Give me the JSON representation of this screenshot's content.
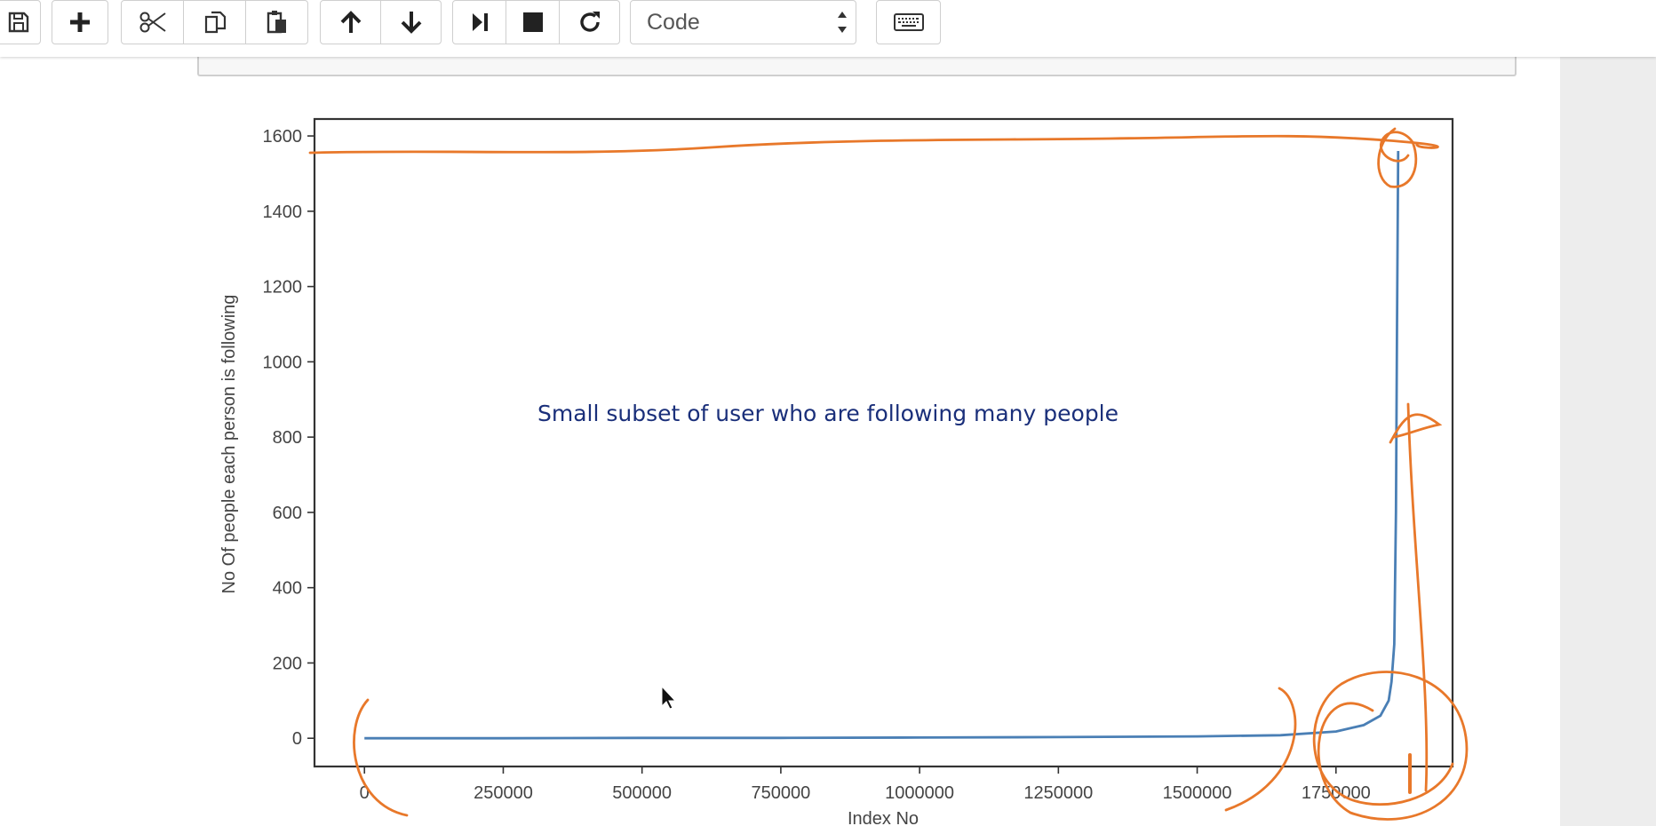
{
  "toolbar": {
    "buttons": [
      {
        "name": "save-icon"
      },
      {
        "name": "plus-icon"
      },
      {
        "name": "scissors-icon"
      },
      {
        "name": "copy-icon"
      },
      {
        "name": "paste-icon"
      },
      {
        "name": "arrow-up-icon"
      },
      {
        "name": "arrow-down-icon"
      },
      {
        "name": "step-forward-icon"
      },
      {
        "name": "stop-icon"
      },
      {
        "name": "restart-icon"
      },
      {
        "name": "keyboard-icon"
      }
    ],
    "cell_type": "Code"
  },
  "annotation": {
    "text": "Small subset of user who are following many people",
    "color": "#1a2f7a",
    "pen_color": "#e8782a"
  },
  "chart_data": {
    "type": "line",
    "xlabel": "Index No",
    "ylabel": "No Of people each person is following",
    "x_ticks": [
      0,
      250000,
      500000,
      750000,
      1000000,
      1250000,
      1500000,
      1750000
    ],
    "y_ticks": [
      0,
      200,
      400,
      600,
      800,
      1000,
      1200,
      1400,
      1600
    ],
    "xlim": [
      -90000,
      1960000
    ],
    "ylim": [
      -75,
      1645
    ],
    "series": [
      {
        "color": "#4a7fb5",
        "x": [
          0,
          250000,
          500000,
          750000,
          1000000,
          1250000,
          1500000,
          1650000,
          1750000,
          1800000,
          1830000,
          1845000,
          1850000,
          1855000,
          1858000,
          1860000,
          1862000
        ],
        "y": [
          0,
          0,
          1,
          1,
          2,
          3,
          5,
          8,
          18,
          35,
          60,
          100,
          150,
          250,
          600,
          1100,
          1560
        ]
      }
    ]
  }
}
